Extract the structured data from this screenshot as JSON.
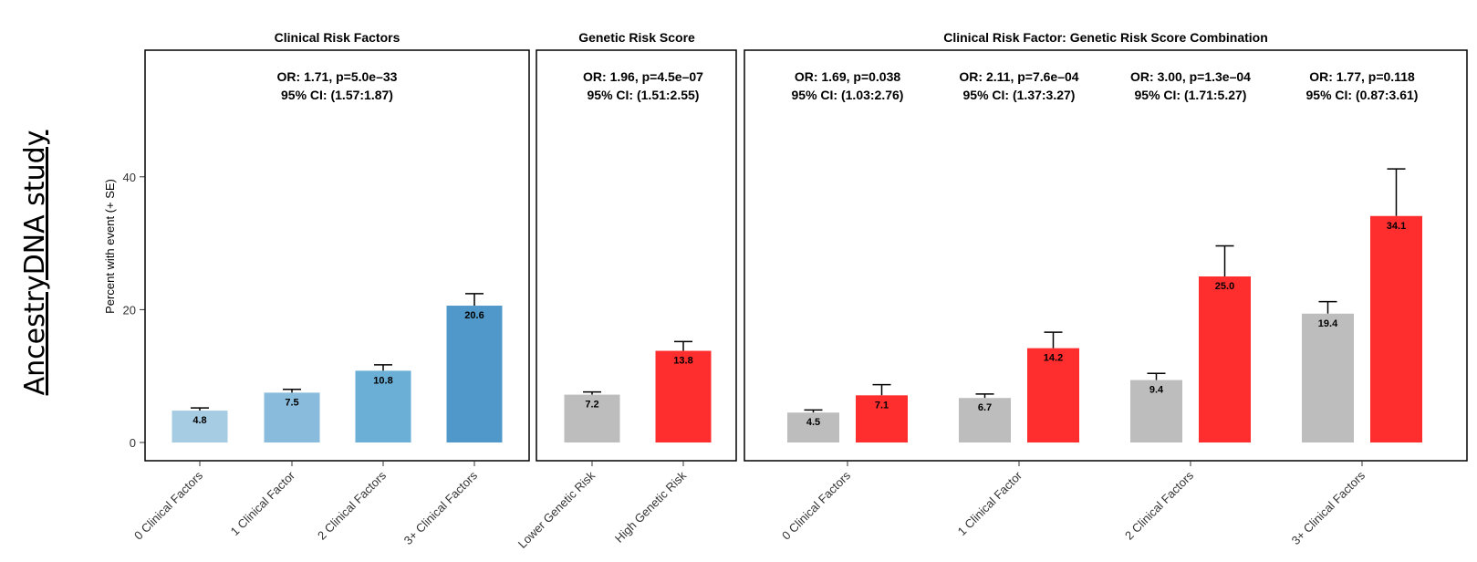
{
  "side_label": "AncestryDNA study",
  "y_axis": {
    "label": "Percent with event (+ SE)",
    "ylim": [
      0,
      62
    ],
    "ticks": [
      0,
      20,
      40
    ]
  },
  "colors": {
    "light_blue_0": "#a6cce3",
    "light_blue_1": "#88bbdc",
    "light_blue_2": "#6baed6",
    "blue_3": "#4f98c9",
    "gray": "#bdbdbd",
    "red": "#ff2e2e"
  },
  "chart_data": [
    {
      "type": "bar",
      "title": "Clinical Risk Factors",
      "categories": [
        "0 Clinical Factors",
        "1 Clinical Factor",
        "2 Clinical Factors",
        "3+ Clinical Factors"
      ],
      "values": [
        4.8,
        7.5,
        10.8,
        20.6
      ],
      "se_upper": [
        5.2,
        8.0,
        11.7,
        22.4
      ],
      "value_labels": [
        "4.8",
        "7.5",
        "10.8",
        "20.6"
      ],
      "bar_colors": [
        "#a6cce3",
        "#88bbdc",
        "#6baed6",
        "#4f98c9"
      ],
      "annotations": [
        {
          "line1": "OR: 1.71, p=5.0e–33",
          "line2": "95% CI: (1.57:1.87)"
        }
      ]
    },
    {
      "type": "bar",
      "title": "Genetic Risk Score",
      "categories": [
        "Lower Genetic Risk",
        "High Genetic Risk"
      ],
      "values": [
        7.2,
        13.8
      ],
      "se_upper": [
        7.6,
        15.2
      ],
      "value_labels": [
        "7.2",
        "13.8"
      ],
      "bar_colors": [
        "#bdbdbd",
        "#ff2e2e"
      ],
      "annotations": [
        {
          "line1": "OR: 1.96, p=4.5e–07",
          "line2": "95% CI: (1.51:2.55)"
        }
      ]
    },
    {
      "type": "bar",
      "title": "Clinical Risk Factor: Genetic Risk Score Combination",
      "categories": [
        "0 Clinical Factors",
        "1 Clinical Factor",
        "2 Clinical Factors",
        "3+ Clinical Factors"
      ],
      "series": [
        {
          "values": [
            4.5,
            6.7,
            9.4,
            19.4
          ],
          "se_upper": [
            4.9,
            7.3,
            10.4,
            21.2
          ],
          "value_labels": [
            "4.5",
            "6.7",
            "9.4",
            "19.4"
          ],
          "color": "#bdbdbd"
        },
        {
          "values": [
            7.1,
            14.2,
            25.0,
            34.1
          ],
          "se_upper": [
            8.7,
            16.6,
            29.6,
            41.2
          ],
          "value_labels": [
            "7.1",
            "14.2",
            "25.0",
            "34.1"
          ],
          "color": "#ff2e2e"
        }
      ],
      "annotations": [
        {
          "line1": "OR: 1.69, p=0.038",
          "line2": "95% CI: (1.03:2.76)"
        },
        {
          "line1": "OR: 2.11, p=7.6e–04",
          "line2": "95% CI: (1.37:3.27)"
        },
        {
          "line1": "OR: 3.00, p=1.3e–04",
          "line2": "95% CI: (1.71:5.27)"
        },
        {
          "line1": "OR: 1.77, p=0.118",
          "line2": "95% CI: (0.87:3.61)"
        }
      ]
    }
  ]
}
